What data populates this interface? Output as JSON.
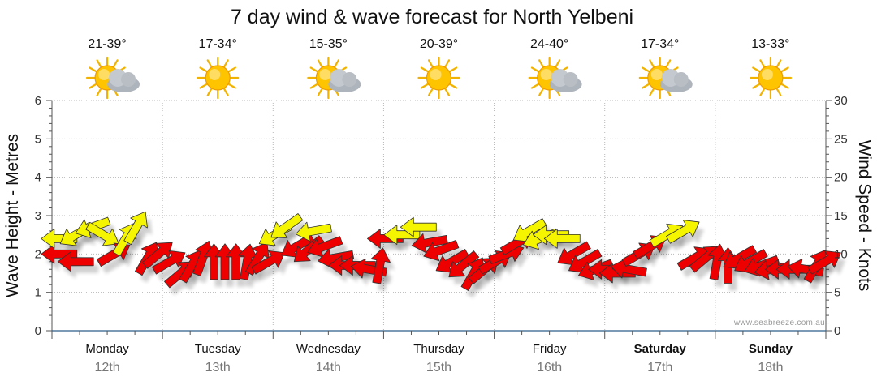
{
  "chart_data": {
    "type": "scatter",
    "title": "7 day wind & wave forecast for North Yelbeni",
    "ylabel": "Wave Height - Metres",
    "ylabel_right": "Wind Speed - Knots",
    "ylim": [
      0,
      6
    ],
    "ylim_right": [
      0,
      30
    ],
    "yticks_left": [
      "0",
      "1",
      "2",
      "3",
      "4",
      "5",
      "6"
    ],
    "yticks_right": [
      "0",
      "5",
      "10",
      "15",
      "20",
      "25",
      "30"
    ],
    "grid": true,
    "watermark": "www.seabreeze.com.au",
    "days": [
      {
        "name": "Monday",
        "date": "12th",
        "temp": "21-39°",
        "weather": "partly-cloudy",
        "bold": false
      },
      {
        "name": "Tuesday",
        "date": "13th",
        "temp": "17-34°",
        "weather": "sunny",
        "bold": false
      },
      {
        "name": "Wednesday",
        "date": "14th",
        "temp": "15-35°",
        "weather": "partly-cloudy",
        "bold": false
      },
      {
        "name": "Thursday",
        "date": "15th",
        "temp": "20-39°",
        "weather": "sunny",
        "bold": false
      },
      {
        "name": "Friday",
        "date": "16th",
        "temp": "24-40°",
        "weather": "partly-cloudy",
        "bold": false
      },
      {
        "name": "Saturday",
        "date": "17th",
        "temp": "17-34°",
        "weather": "partly-cloudy",
        "bold": true
      },
      {
        "name": "Sunday",
        "date": "18th",
        "temp": "13-33°",
        "weather": "sunny",
        "bold": true
      }
    ],
    "colors": {
      "red_wind": "#ee0000",
      "yellow_wind": "#f5f500",
      "grid": "#b8b8b8",
      "axis": "#555555"
    },
    "series": [
      {
        "name": "Wind",
        "unit": "knots",
        "points": [
          {
            "x": 0.05,
            "y": 10.0,
            "dir": 180,
            "color": "red"
          },
          {
            "x": 0.2,
            "y": 9.0,
            "dir": 180,
            "color": "red"
          },
          {
            "x": 0.05,
            "y": 12.0,
            "dir": 180,
            "color": "yellow"
          },
          {
            "x": 0.2,
            "y": 12.5,
            "dir": 150,
            "color": "yellow"
          },
          {
            "x": 0.35,
            "y": 13.5,
            "dir": 160,
            "color": "yellow"
          },
          {
            "x": 0.45,
            "y": 12.5,
            "dir": 30,
            "color": "yellow"
          },
          {
            "x": 0.55,
            "y": 10.0,
            "dir": 330,
            "color": "red"
          },
          {
            "x": 0.65,
            "y": 12.0,
            "dir": 300,
            "color": "yellow"
          },
          {
            "x": 0.75,
            "y": 13.5,
            "dir": 300,
            "color": "yellow"
          },
          {
            "x": 0.85,
            "y": 9.5,
            "dir": 300,
            "color": "red"
          },
          {
            "x": 0.95,
            "y": 10.0,
            "dir": 320,
            "color": "red"
          },
          {
            "x": 1.05,
            "y": 9.0,
            "dir": 330,
            "color": "red"
          },
          {
            "x": 1.15,
            "y": 7.5,
            "dir": 320,
            "color": "red"
          },
          {
            "x": 1.25,
            "y": 8.5,
            "dir": 300,
            "color": "red"
          },
          {
            "x": 1.35,
            "y": 9.5,
            "dir": 290,
            "color": "red"
          },
          {
            "x": 1.45,
            "y": 9.0,
            "dir": 270,
            "color": "red"
          },
          {
            "x": 1.55,
            "y": 9.0,
            "dir": 270,
            "color": "red"
          },
          {
            "x": 1.65,
            "y": 9.0,
            "dir": 270,
            "color": "red"
          },
          {
            "x": 1.75,
            "y": 9.0,
            "dir": 280,
            "color": "red"
          },
          {
            "x": 1.85,
            "y": 9.5,
            "dir": 300,
            "color": "red"
          },
          {
            "x": 1.95,
            "y": 9.0,
            "dir": 330,
            "color": "red"
          },
          {
            "x": 2.0,
            "y": 12.5,
            "dir": 150,
            "color": "yellow"
          },
          {
            "x": 2.1,
            "y": 13.5,
            "dir": 145,
            "color": "yellow"
          },
          {
            "x": 2.2,
            "y": 11.0,
            "dir": 150,
            "color": "red"
          },
          {
            "x": 2.3,
            "y": 10.5,
            "dir": 140,
            "color": "red"
          },
          {
            "x": 2.35,
            "y": 13.0,
            "dir": 170,
            "color": "yellow"
          },
          {
            "x": 2.45,
            "y": 11.0,
            "dir": 160,
            "color": "red"
          },
          {
            "x": 2.55,
            "y": 9.5,
            "dir": 170,
            "color": "red"
          },
          {
            "x": 2.65,
            "y": 8.5,
            "dir": 180,
            "color": "red"
          },
          {
            "x": 2.75,
            "y": 8.5,
            "dir": 180,
            "color": "red"
          },
          {
            "x": 2.85,
            "y": 8.0,
            "dir": 190,
            "color": "red"
          },
          {
            "x": 2.95,
            "y": 8.5,
            "dir": 280,
            "color": "red"
          },
          {
            "x": 3.0,
            "y": 12.0,
            "dir": 180,
            "color": "red"
          },
          {
            "x": 3.15,
            "y": 12.5,
            "dir": 180,
            "color": "yellow"
          },
          {
            "x": 3.3,
            "y": 13.5,
            "dir": 180,
            "color": "yellow"
          },
          {
            "x": 3.4,
            "y": 11.5,
            "dir": 170,
            "color": "red"
          },
          {
            "x": 3.5,
            "y": 10.5,
            "dir": 160,
            "color": "red"
          },
          {
            "x": 3.6,
            "y": 9.0,
            "dir": 150,
            "color": "red"
          },
          {
            "x": 3.7,
            "y": 8.5,
            "dir": 140,
            "color": "red"
          },
          {
            "x": 3.8,
            "y": 7.5,
            "dir": 300,
            "color": "red"
          },
          {
            "x": 3.9,
            "y": 8.0,
            "dir": 320,
            "color": "red"
          },
          {
            "x": 4.0,
            "y": 9.0,
            "dir": 330,
            "color": "red"
          },
          {
            "x": 4.1,
            "y": 10.0,
            "dir": 340,
            "color": "red"
          },
          {
            "x": 4.2,
            "y": 11.5,
            "dir": 330,
            "color": "red"
          },
          {
            "x": 4.3,
            "y": 13.0,
            "dir": 150,
            "color": "yellow"
          },
          {
            "x": 4.4,
            "y": 12.0,
            "dir": 160,
            "color": "yellow"
          },
          {
            "x": 4.5,
            "y": 12.5,
            "dir": 180,
            "color": "yellow"
          },
          {
            "x": 4.6,
            "y": 12.0,
            "dir": 180,
            "color": "yellow"
          },
          {
            "x": 4.7,
            "y": 10.0,
            "dir": 150,
            "color": "red"
          },
          {
            "x": 4.8,
            "y": 9.0,
            "dir": 150,
            "color": "red"
          },
          {
            "x": 4.9,
            "y": 8.0,
            "dir": 160,
            "color": "red"
          },
          {
            "x": 5.0,
            "y": 8.0,
            "dir": 180,
            "color": "red"
          },
          {
            "x": 5.1,
            "y": 7.5,
            "dir": 180,
            "color": "red"
          },
          {
            "x": 5.2,
            "y": 8.0,
            "dir": 190,
            "color": "red"
          },
          {
            "x": 5.3,
            "y": 10.0,
            "dir": 330,
            "color": "red"
          },
          {
            "x": 5.4,
            "y": 11.0,
            "dir": 330,
            "color": "red"
          },
          {
            "x": 5.55,
            "y": 12.5,
            "dir": 330,
            "color": "yellow"
          },
          {
            "x": 5.7,
            "y": 13.0,
            "dir": 330,
            "color": "yellow"
          },
          {
            "x": 5.8,
            "y": 9.5,
            "dir": 330,
            "color": "red"
          },
          {
            "x": 5.9,
            "y": 9.5,
            "dir": 320,
            "color": "red"
          },
          {
            "x": 6.0,
            "y": 9.0,
            "dir": 280,
            "color": "red"
          },
          {
            "x": 6.1,
            "y": 8.5,
            "dir": 270,
            "color": "red"
          },
          {
            "x": 6.2,
            "y": 9.5,
            "dir": 150,
            "color": "red"
          },
          {
            "x": 6.3,
            "y": 9.0,
            "dir": 150,
            "color": "red"
          },
          {
            "x": 6.4,
            "y": 8.5,
            "dir": 160,
            "color": "red"
          },
          {
            "x": 6.5,
            "y": 8.0,
            "dir": 170,
            "color": "red"
          },
          {
            "x": 6.6,
            "y": 8.0,
            "dir": 180,
            "color": "red"
          },
          {
            "x": 6.7,
            "y": 8.0,
            "dir": 180,
            "color": "red"
          },
          {
            "x": 6.8,
            "y": 8.0,
            "dir": 190,
            "color": "red"
          },
          {
            "x": 6.9,
            "y": 8.5,
            "dir": 300,
            "color": "red"
          },
          {
            "x": 6.98,
            "y": 9.0,
            "dir": 330,
            "color": "red"
          }
        ]
      }
    ]
  }
}
